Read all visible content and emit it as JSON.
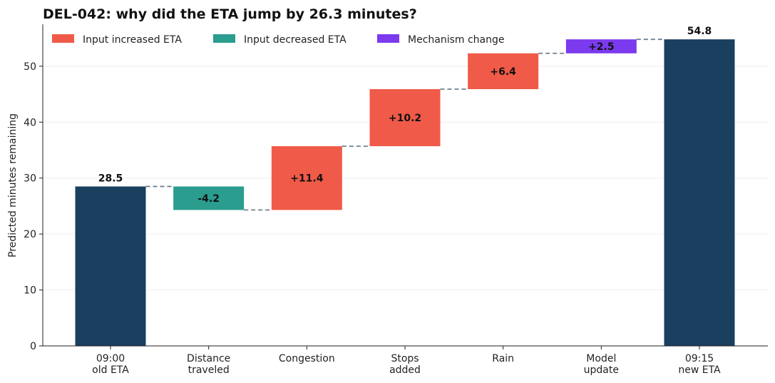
{
  "chart_data": {
    "type": "bar",
    "subtype": "waterfall",
    "title": "DEL-042: why did the ETA jump by 26.3 minutes?",
    "ylabel": "Predicted minutes remaining",
    "ylim": [
      0,
      57.5
    ],
    "yticks": [
      0,
      10,
      20,
      30,
      40,
      50
    ],
    "grid": "horizontal",
    "legend_position": "top-left",
    "legend": [
      {
        "kind": "increase",
        "label": "Input increased ETA",
        "color": "#f05a48"
      },
      {
        "kind": "decrease",
        "label": "Input decreased ETA",
        "color": "#2a9d8f"
      },
      {
        "kind": "mechanism",
        "label": "Mechanism change",
        "color": "#7b3aed"
      }
    ],
    "total_color": "#1a3f5f",
    "steps": [
      {
        "category": [
          "09:00",
          "old ETA"
        ],
        "kind": "total",
        "value": 28.5,
        "label": "28.5"
      },
      {
        "category": [
          "Distance",
          "traveled"
        ],
        "kind": "decrease",
        "value": -4.2,
        "label": "-4.2"
      },
      {
        "category": [
          "Congestion"
        ],
        "kind": "increase",
        "value": 11.4,
        "label": "+11.4"
      },
      {
        "category": [
          "Stops",
          "added"
        ],
        "kind": "increase",
        "value": 10.2,
        "label": "+10.2"
      },
      {
        "category": [
          "Rain"
        ],
        "kind": "increase",
        "value": 6.4,
        "label": "+6.4"
      },
      {
        "category": [
          "Model",
          "update"
        ],
        "kind": "mechanism",
        "value": 2.5,
        "label": "+2.5"
      },
      {
        "category": [
          "09:15",
          "new ETA"
        ],
        "kind": "total",
        "value": 54.8,
        "label": "54.8"
      }
    ]
  }
}
